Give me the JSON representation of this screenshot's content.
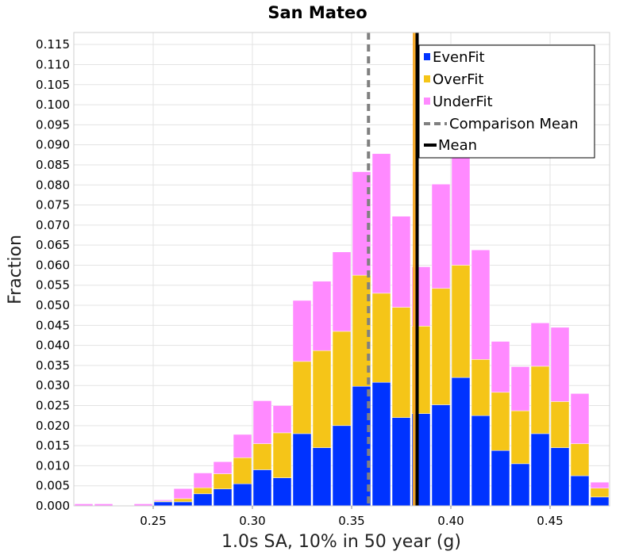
{
  "chart_data": {
    "type": "bar",
    "stacked": true,
    "title": "San Mateo",
    "xlabel": "1.0s SA, 10% in 50 year (g)",
    "ylabel": "Fraction",
    "xlim": [
      0.21,
      0.48
    ],
    "ylim": [
      0.0,
      0.118
    ],
    "x_ticks": [
      0.25,
      0.3,
      0.35,
      0.4,
      0.45
    ],
    "x_tick_labels": [
      "0.25",
      "0.30",
      "0.35",
      "0.40",
      "0.45"
    ],
    "y_ticks": [
      0.0,
      0.005,
      0.01,
      0.015,
      0.02,
      0.025,
      0.03,
      0.035,
      0.04,
      0.045,
      0.05,
      0.055,
      0.06,
      0.065,
      0.07,
      0.075,
      0.08,
      0.085,
      0.09,
      0.095,
      0.1,
      0.105,
      0.11,
      0.115
    ],
    "y_tick_labels": [
      "0.000",
      "0.005",
      "0.010",
      "0.015",
      "0.020",
      "0.025",
      "0.030",
      "0.035",
      "0.040",
      "0.045",
      "0.050",
      "0.055",
      "0.060",
      "0.065",
      "0.070",
      "0.075",
      "0.080",
      "0.085",
      "0.090",
      "0.095",
      "0.100",
      "0.105",
      "0.110",
      "0.115"
    ],
    "bin_width": 0.01,
    "bin_centers": [
      0.215,
      0.225,
      0.235,
      0.245,
      0.255,
      0.265,
      0.275,
      0.285,
      0.295,
      0.305,
      0.315,
      0.325,
      0.335,
      0.345,
      0.355,
      0.365,
      0.375,
      0.385,
      0.395,
      0.405,
      0.415,
      0.425,
      0.435,
      0.445,
      0.455,
      0.465,
      0.475
    ],
    "series": [
      {
        "name": "EvenFit",
        "color": "#0033ff",
        "values": [
          0.0,
          0.0,
          0.0,
          0.0,
          0.001,
          0.001,
          0.003,
          0.0042,
          0.0055,
          0.009,
          0.007,
          0.018,
          0.0145,
          0.02,
          0.0298,
          0.0308,
          0.022,
          0.023,
          0.0252,
          0.032,
          0.0225,
          0.0138,
          0.0105,
          0.018,
          0.0145,
          0.0075,
          0.0022
        ]
      },
      {
        "name": "OverFit",
        "color": "#f5c518",
        "values": [
          0.0,
          0.0,
          0.0,
          0.0,
          0.0002,
          0.0008,
          0.0015,
          0.0038,
          0.0065,
          0.0065,
          0.0112,
          0.018,
          0.0242,
          0.0235,
          0.0277,
          0.0222,
          0.0275,
          0.0218,
          0.029,
          0.028,
          0.014,
          0.0145,
          0.0132,
          0.0168,
          0.0115,
          0.008,
          0.0022
        ]
      },
      {
        "name": "UnderFit",
        "color": "#ff8aff",
        "values": [
          0.0005,
          0.0005,
          0.0,
          0.0005,
          0.0003,
          0.0025,
          0.0037,
          0.003,
          0.0058,
          0.0107,
          0.0068,
          0.0152,
          0.0173,
          0.0198,
          0.0258,
          0.0348,
          0.0227,
          0.0148,
          0.026,
          0.03,
          0.0273,
          0.0127,
          0.011,
          0.0108,
          0.0185,
          0.0125,
          0.0015
        ]
      }
    ],
    "comparison_mean": {
      "name": "Comparison Mean",
      "x": 0.3585,
      "color": "#808080"
    },
    "mean": {
      "name": "Mean",
      "x": 0.383,
      "color": "#000000"
    },
    "highlight_line": {
      "x": 0.3822,
      "color": "#f5a623"
    },
    "grid": true,
    "legend_position": "top-right"
  }
}
